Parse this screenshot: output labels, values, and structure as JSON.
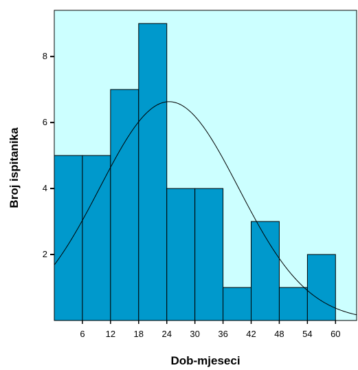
{
  "chart_data": {
    "type": "bar",
    "subtype": "histogram",
    "bin_edges": [
      0,
      6,
      12,
      18,
      24,
      30,
      36,
      42,
      48,
      54,
      60
    ],
    "values": [
      5,
      5,
      7,
      9,
      4,
      4,
      1,
      3,
      1,
      2
    ],
    "xlabel": "Dob-mjeseci",
    "ylabel": "Broj ispitanika",
    "x_ticks": [
      6,
      12,
      18,
      24,
      30,
      36,
      42,
      48,
      54,
      60
    ],
    "y_ticks": [
      2,
      4,
      6,
      8
    ],
    "xlim": [
      0,
      64.5
    ],
    "ylim": [
      0,
      9.4
    ],
    "normal_curve": {
      "mean": 24.5,
      "sd": 14.8,
      "n": 41,
      "bin_width": 6
    },
    "plot_background": "#ccffff",
    "bar_color": "#0099cc",
    "grid": false
  }
}
